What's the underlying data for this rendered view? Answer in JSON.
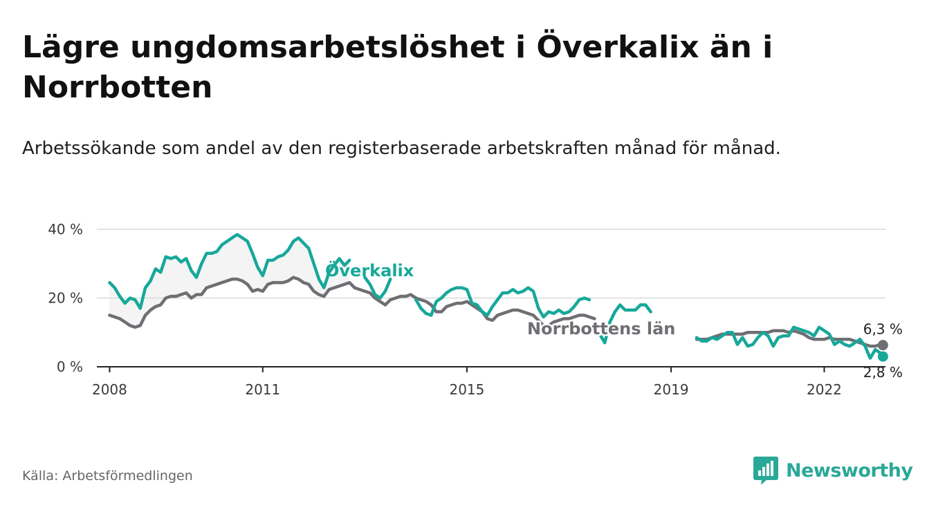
{
  "title": "Lägre ungdomsarbetslöshet i Överkalix än i Norrbotten",
  "subtitle": "Arbetssökande som andel av den registerbaserade arbetskraften månad för månad.",
  "source": "Källa: Arbetsförmedlingen",
  "brand": "Newsworthy",
  "colors": {
    "overkalix": "#17a89a",
    "norrbotten": "#6e6e73",
    "band": "#f4f4f4",
    "grid": "#d9d9d9",
    "axis": "#222222",
    "brand": "#2aa897"
  },
  "chart_data": {
    "type": "line",
    "title": "Lägre ungdomsarbetslöshet i Överkalix än i Norrbotten",
    "xlabel": "",
    "ylabel": "",
    "xlim": [
      2007.75,
      2023.2
    ],
    "ylim": [
      0,
      40
    ],
    "grid": true,
    "y_ticks": [
      0,
      20,
      40
    ],
    "y_tick_labels": [
      "0 %",
      "20 %",
      "40 %"
    ],
    "x_ticks": [
      2008,
      2011,
      2015,
      2019,
      2022
    ],
    "x_tick_labels": [
      "2008",
      "2011",
      "2015",
      "2019",
      "2022"
    ],
    "series": [
      {
        "name": "Överkalix",
        "end_label": "2,8 %",
        "points": [
          [
            2008.0,
            24.5
          ],
          [
            2008.1,
            23
          ],
          [
            2008.2,
            20.5
          ],
          [
            2008.3,
            18.5
          ],
          [
            2008.4,
            20
          ],
          [
            2008.5,
            19.5
          ],
          [
            2008.6,
            17
          ],
          [
            2008.7,
            23
          ],
          [
            2008.8,
            25
          ],
          [
            2008.9,
            28.5
          ],
          [
            2009.0,
            27.5
          ],
          [
            2009.1,
            32
          ],
          [
            2009.2,
            31.5
          ],
          [
            2009.3,
            32
          ],
          [
            2009.4,
            30.5
          ],
          [
            2009.5,
            31.5
          ],
          [
            2009.6,
            28
          ],
          [
            2009.7,
            26
          ],
          [
            2009.8,
            30
          ],
          [
            2009.9,
            33
          ],
          [
            2010.0,
            33
          ],
          [
            2010.1,
            33.5
          ],
          [
            2010.2,
            35.5
          ],
          [
            2010.3,
            36.5
          ],
          [
            2010.4,
            37.5
          ],
          [
            2010.5,
            38.5
          ],
          [
            2010.6,
            37.5
          ],
          [
            2010.7,
            36.5
          ],
          [
            2010.8,
            33
          ],
          [
            2010.9,
            29
          ],
          [
            2011.0,
            26.5
          ],
          [
            2011.1,
            31
          ],
          [
            2011.2,
            31
          ],
          [
            2011.3,
            32
          ],
          [
            2011.4,
            32.5
          ],
          [
            2011.5,
            34
          ],
          [
            2011.6,
            36.5
          ],
          [
            2011.7,
            37.5
          ],
          [
            2011.8,
            36
          ],
          [
            2011.9,
            34.5
          ],
          [
            2012.0,
            30
          ],
          [
            2012.1,
            25.5
          ],
          [
            2012.2,
            23
          ],
          [
            2012.3,
            27.5
          ],
          [
            2012.4,
            29.5
          ],
          [
            2012.5,
            31.5
          ],
          [
            2012.6,
            29.5
          ],
          [
            2012.7,
            31
          ],
          [
            2013.0,
            26
          ],
          [
            2013.1,
            24
          ],
          [
            2013.2,
            21
          ],
          [
            2013.3,
            20
          ],
          [
            2013.4,
            22
          ],
          [
            2013.5,
            25.5
          ],
          [
            2014.0,
            19.5
          ],
          [
            2014.1,
            17
          ],
          [
            2014.2,
            15.5
          ],
          [
            2014.3,
            15
          ],
          [
            2014.4,
            19
          ],
          [
            2014.5,
            20
          ],
          [
            2014.6,
            21.5
          ],
          [
            2014.7,
            22.5
          ],
          [
            2014.8,
            23
          ],
          [
            2014.9,
            23
          ],
          [
            2015.0,
            22.5
          ],
          [
            2015.1,
            18.5
          ],
          [
            2015.2,
            18
          ],
          [
            2015.3,
            16
          ],
          [
            2015.4,
            15
          ],
          [
            2015.5,
            17.5
          ],
          [
            2015.6,
            19.5
          ],
          [
            2015.7,
            21.5
          ],
          [
            2015.8,
            21.5
          ],
          [
            2015.9,
            22.5
          ],
          [
            2016.0,
            21.5
          ],
          [
            2016.1,
            22
          ],
          [
            2016.2,
            23
          ],
          [
            2016.3,
            22
          ],
          [
            2016.4,
            17
          ],
          [
            2016.5,
            14.5
          ],
          [
            2016.6,
            16
          ],
          [
            2016.7,
            15.5
          ],
          [
            2016.8,
            16.5
          ],
          [
            2016.9,
            15.5
          ],
          [
            2017.0,
            16
          ],
          [
            2017.1,
            17.5
          ],
          [
            2017.2,
            19.5
          ],
          [
            2017.3,
            20
          ],
          [
            2017.4,
            19.5
          ],
          [
            2017.6,
            9.5
          ],
          [
            2017.7,
            7
          ],
          [
            2017.8,
            13
          ],
          [
            2017.9,
            16
          ],
          [
            2018.0,
            18
          ],
          [
            2018.1,
            16.5
          ],
          [
            2018.2,
            16.5
          ],
          [
            2018.3,
            16.5
          ],
          [
            2018.4,
            18
          ],
          [
            2018.5,
            18
          ],
          [
            2018.6,
            16
          ],
          [
            2019.5,
            8.5
          ],
          [
            2019.6,
            7.5
          ],
          [
            2019.7,
            7.5
          ],
          [
            2019.8,
            8.5
          ],
          [
            2019.9,
            8
          ],
          [
            2020.0,
            9
          ],
          [
            2020.1,
            10
          ],
          [
            2020.2,
            10
          ],
          [
            2020.3,
            6.5
          ],
          [
            2020.4,
            8.5
          ],
          [
            2020.5,
            6
          ],
          [
            2020.6,
            6.5
          ],
          [
            2020.7,
            8.5
          ],
          [
            2020.8,
            10
          ],
          [
            2020.9,
            9
          ],
          [
            2021.0,
            6
          ],
          [
            2021.1,
            8.5
          ],
          [
            2021.2,
            9
          ],
          [
            2021.3,
            9
          ],
          [
            2021.4,
            11.5
          ],
          [
            2021.5,
            11
          ],
          [
            2021.6,
            10.5
          ],
          [
            2021.7,
            10
          ],
          [
            2021.8,
            9
          ],
          [
            2021.9,
            11.5
          ],
          [
            2022.0,
            10.5
          ],
          [
            2022.1,
            9.5
          ],
          [
            2022.2,
            6.5
          ],
          [
            2022.3,
            7.5
          ],
          [
            2022.4,
            6.5
          ],
          [
            2022.5,
            6
          ],
          [
            2022.6,
            7
          ],
          [
            2022.7,
            8
          ],
          [
            2022.8,
            6
          ],
          [
            2022.9,
            2.5
          ],
          [
            2023.0,
            5
          ],
          [
            2023.1,
            4
          ],
          [
            2023.15,
            3
          ]
        ]
      },
      {
        "name": "Norrbottens län",
        "end_label": "6,3 %",
        "points": [
          [
            2008.0,
            15
          ],
          [
            2008.1,
            14.5
          ],
          [
            2008.2,
            14
          ],
          [
            2008.3,
            13
          ],
          [
            2008.4,
            12
          ],
          [
            2008.5,
            11.5
          ],
          [
            2008.6,
            12
          ],
          [
            2008.7,
            15
          ],
          [
            2008.8,
            16.5
          ],
          [
            2008.9,
            17.5
          ],
          [
            2009.0,
            18
          ],
          [
            2009.1,
            20
          ],
          [
            2009.2,
            20.5
          ],
          [
            2009.3,
            20.5
          ],
          [
            2009.4,
            21
          ],
          [
            2009.5,
            21.5
          ],
          [
            2009.6,
            20
          ],
          [
            2009.7,
            21
          ],
          [
            2009.8,
            21
          ],
          [
            2009.9,
            23
          ],
          [
            2010.0,
            23.5
          ],
          [
            2010.1,
            24
          ],
          [
            2010.2,
            24.5
          ],
          [
            2010.3,
            25
          ],
          [
            2010.4,
            25.5
          ],
          [
            2010.5,
            25.5
          ],
          [
            2010.6,
            25
          ],
          [
            2010.7,
            24
          ],
          [
            2010.8,
            22
          ],
          [
            2010.9,
            22.5
          ],
          [
            2011.0,
            22
          ],
          [
            2011.1,
            24
          ],
          [
            2011.2,
            24.5
          ],
          [
            2011.3,
            24.5
          ],
          [
            2011.4,
            24.5
          ],
          [
            2011.5,
            25
          ],
          [
            2011.6,
            26
          ],
          [
            2011.7,
            25.5
          ],
          [
            2011.8,
            24.5
          ],
          [
            2011.9,
            24
          ],
          [
            2012.0,
            22
          ],
          [
            2012.1,
            21
          ],
          [
            2012.2,
            20.5
          ],
          [
            2012.3,
            22.5
          ],
          [
            2012.4,
            23
          ],
          [
            2012.5,
            23.5
          ],
          [
            2012.6,
            24
          ],
          [
            2012.7,
            24.5
          ],
          [
            2012.8,
            23
          ],
          [
            2012.9,
            22.5
          ],
          [
            2013.0,
            22
          ],
          [
            2013.1,
            21.5
          ],
          [
            2013.2,
            20
          ],
          [
            2013.3,
            19
          ],
          [
            2013.4,
            18
          ],
          [
            2013.5,
            19.5
          ],
          [
            2013.6,
            20
          ],
          [
            2013.7,
            20.5
          ],
          [
            2013.8,
            20.5
          ],
          [
            2013.9,
            21
          ],
          [
            2014.0,
            20
          ],
          [
            2014.1,
            19.5
          ],
          [
            2014.2,
            19
          ],
          [
            2014.3,
            18
          ],
          [
            2014.4,
            16
          ],
          [
            2014.5,
            16
          ],
          [
            2014.6,
            17.5
          ],
          [
            2014.7,
            18
          ],
          [
            2014.8,
            18.5
          ],
          [
            2014.9,
            18.5
          ],
          [
            2015.0,
            19
          ],
          [
            2015.1,
            18
          ],
          [
            2015.2,
            17
          ],
          [
            2015.3,
            16
          ],
          [
            2015.4,
            14
          ],
          [
            2015.5,
            13.5
          ],
          [
            2015.6,
            15
          ],
          [
            2015.7,
            15.5
          ],
          [
            2015.8,
            16
          ],
          [
            2015.9,
            16.5
          ],
          [
            2016.0,
            16.5
          ],
          [
            2016.1,
            16
          ],
          [
            2016.2,
            15.5
          ],
          [
            2016.3,
            15
          ],
          [
            2016.4,
            13.5
          ],
          [
            2016.5,
            12
          ],
          [
            2016.6,
            12
          ],
          [
            2016.7,
            13
          ],
          [
            2016.8,
            13.5
          ],
          [
            2016.9,
            14
          ],
          [
            2017.0,
            14
          ],
          [
            2017.1,
            14.5
          ],
          [
            2017.2,
            15
          ],
          [
            2017.3,
            15
          ],
          [
            2017.4,
            14.5
          ],
          [
            2017.5,
            14
          ],
          [
            2019.5,
            8
          ],
          [
            2019.6,
            8
          ],
          [
            2019.7,
            8
          ],
          [
            2019.8,
            8.5
          ],
          [
            2019.9,
            9
          ],
          [
            2020.0,
            9.5
          ],
          [
            2020.1,
            9.5
          ],
          [
            2020.2,
            9.5
          ],
          [
            2020.3,
            9.5
          ],
          [
            2020.4,
            9.5
          ],
          [
            2020.5,
            10
          ],
          [
            2020.6,
            10
          ],
          [
            2020.7,
            10
          ],
          [
            2020.8,
            10
          ],
          [
            2020.9,
            10
          ],
          [
            2021.0,
            10.5
          ],
          [
            2021.1,
            10.5
          ],
          [
            2021.2,
            10.5
          ],
          [
            2021.3,
            10
          ],
          [
            2021.4,
            10.5
          ],
          [
            2021.5,
            10
          ],
          [
            2021.6,
            9.5
          ],
          [
            2021.7,
            8.5
          ],
          [
            2021.8,
            8
          ],
          [
            2021.9,
            8
          ],
          [
            2022.0,
            8
          ],
          [
            2022.1,
            8.5
          ],
          [
            2022.2,
            8
          ],
          [
            2022.3,
            8
          ],
          [
            2022.4,
            8
          ],
          [
            2022.5,
            8
          ],
          [
            2022.6,
            7.5
          ],
          [
            2022.7,
            7
          ],
          [
            2022.8,
            6.5
          ],
          [
            2022.9,
            6
          ],
          [
            2023.0,
            6
          ],
          [
            2023.1,
            6.5
          ],
          [
            2023.15,
            6.3
          ]
        ]
      }
    ]
  }
}
